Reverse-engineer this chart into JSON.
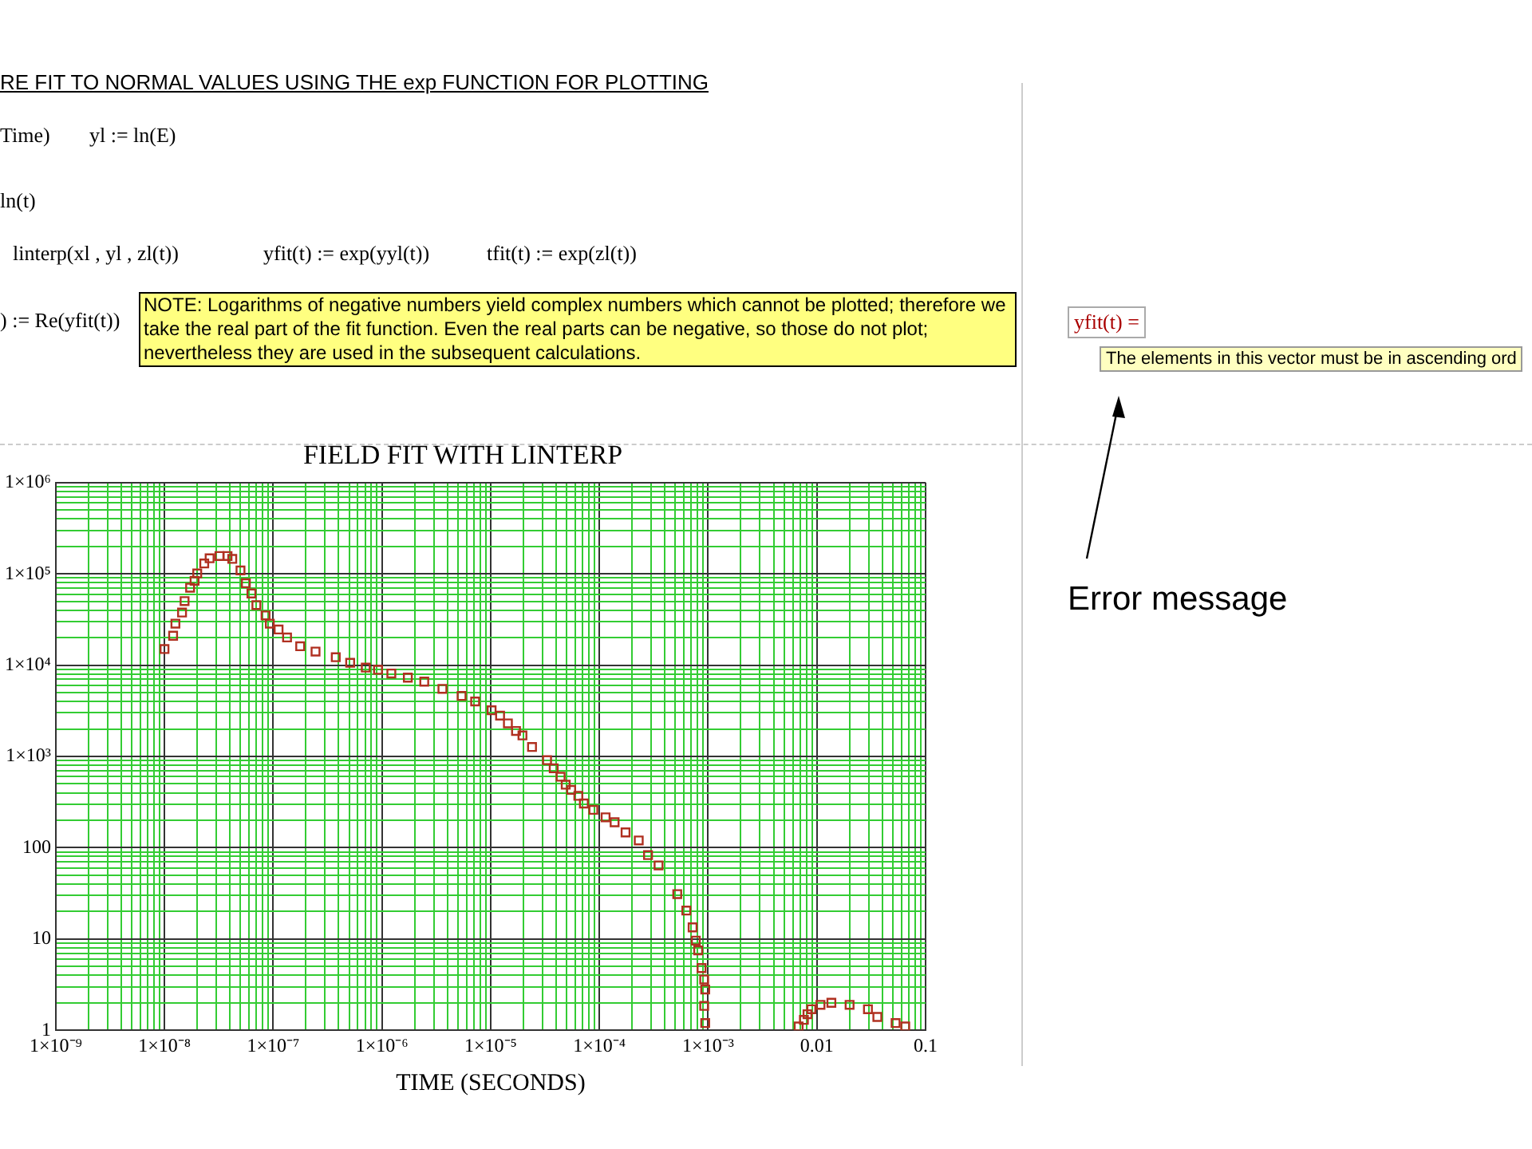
{
  "chart_data": {
    "type": "scatter",
    "title": "FIELD FIT WITH LINTERP",
    "xlabel": "TIME (SECONDS)",
    "log": "xy",
    "grid": true,
    "marker": "square",
    "xlim": [
      1e-09,
      0.1
    ],
    "xticks": [
      {
        "value": 1e-09,
        "label": "1×10⁻⁹"
      },
      {
        "value": 2e-09,
        "label": null
      },
      {
        "value": 3e-09,
        "label": null
      },
      {
        "value": 4e-09,
        "label": null
      },
      {
        "value": 5e-09,
        "label": null
      },
      {
        "value": 6e-09,
        "label": null
      },
      {
        "value": 7e-09,
        "label": null
      },
      {
        "value": 8e-09,
        "label": null
      },
      {
        "value": 9e-09,
        "label": null
      },
      {
        "value": 1e-08,
        "label": "1×10⁻⁸"
      },
      {
        "value": 2e-08,
        "label": null
      },
      {
        "value": 3e-08,
        "label": null
      },
      {
        "value": 4e-08,
        "label": null
      },
      {
        "value": 5e-08,
        "label": null
      },
      {
        "value": 6e-08,
        "label": null
      },
      {
        "value": 7e-08,
        "label": null
      },
      {
        "value": 8e-08,
        "label": null
      },
      {
        "value": 9e-08,
        "label": null
      },
      {
        "value": 1e-07,
        "label": "1×10⁻⁷"
      },
      {
        "value": 2e-07,
        "label": null
      },
      {
        "value": 3e-07,
        "label": null
      },
      {
        "value": 4e-07,
        "label": null
      },
      {
        "value": 5e-07,
        "label": null
      },
      {
        "value": 6e-07,
        "label": null
      },
      {
        "value": 7e-07,
        "label": null
      },
      {
        "value": 8e-07,
        "label": null
      },
      {
        "value": 9e-07,
        "label": null
      },
      {
        "value": 1e-06,
        "label": "1×10⁻⁶"
      },
      {
        "value": 2e-06,
        "label": null
      },
      {
        "value": 3e-06,
        "label": null
      },
      {
        "value": 4e-06,
        "label": null
      },
      {
        "value": 5e-06,
        "label": null
      },
      {
        "value": 6e-06,
        "label": null
      },
      {
        "value": 7e-06,
        "label": null
      },
      {
        "value": 8e-06,
        "label": null
      },
      {
        "value": 9e-06,
        "label": null
      },
      {
        "value": 1e-05,
        "label": "1×10⁻⁵"
      },
      {
        "value": 2e-05,
        "label": null
      },
      {
        "value": 3e-05,
        "label": null
      },
      {
        "value": 4e-05,
        "label": null
      },
      {
        "value": 5e-05,
        "label": null
      },
      {
        "value": 6e-05,
        "label": null
      },
      {
        "value": 7e-05,
        "label": null
      },
      {
        "value": 8e-05,
        "label": null
      },
      {
        "value": 9e-05,
        "label": null
      },
      {
        "value": 0.0001,
        "label": "1×10⁻⁴"
      },
      {
        "value": 0.0002,
        "label": null
      },
      {
        "value": 0.0003,
        "label": null
      },
      {
        "value": 0.0004,
        "label": null
      },
      {
        "value": 0.0005,
        "label": null
      },
      {
        "value": 0.0006,
        "label": null
      },
      {
        "value": 0.0007,
        "label": null
      },
      {
        "value": 0.0008,
        "label": null
      },
      {
        "value": 0.0009,
        "label": null
      },
      {
        "value": 0.001,
        "label": "1×10⁻³"
      },
      {
        "value": 0.002,
        "label": null
      },
      {
        "value": 0.003,
        "label": null
      },
      {
        "value": 0.004,
        "label": null
      },
      {
        "value": 0.005,
        "label": null
      },
      {
        "value": 0.006,
        "label": null
      },
      {
        "value": 0.007,
        "label": null
      },
      {
        "value": 0.008,
        "label": null
      },
      {
        "value": 0.009,
        "label": null
      },
      0.01,
      {
        "value": 0.02,
        "label": null
      },
      {
        "value": 0.03,
        "label": null
      },
      {
        "value": 0.04,
        "label": null
      },
      {
        "value": 0.05,
        "label": null
      },
      {
        "value": 0.06,
        "label": null
      },
      {
        "value": 0.07,
        "label": null
      },
      {
        "value": 0.08,
        "label": null
      },
      {
        "value": 0.09,
        "label": null
      },
      0.1
    ],
    "ylim": [
      1,
      1000000
    ],
    "yticks": [
      1,
      {
        "value": 2,
        "label": null
      },
      {
        "value": 3,
        "label": null
      },
      {
        "value": 4,
        "label": null
      },
      {
        "value": 5,
        "label": null
      },
      {
        "value": 6,
        "label": null
      },
      {
        "value": 7,
        "label": null
      },
      {
        "value": 8,
        "label": null
      },
      {
        "value": 9,
        "label": null
      },
      10,
      {
        "value": 20,
        "label": null
      },
      {
        "value": 30,
        "label": null
      },
      {
        "value": 40,
        "label": null
      },
      {
        "value": 50,
        "label": null
      },
      {
        "value": 60,
        "label": null
      },
      {
        "value": 70,
        "label": null
      },
      {
        "value": 80,
        "label": null
      },
      {
        "value": 90,
        "label": null
      },
      100,
      {
        "value": 200,
        "label": null
      },
      {
        "value": 300,
        "label": null
      },
      {
        "value": 400,
        "label": null
      },
      {
        "value": 500,
        "label": null
      },
      {
        "value": 600,
        "label": null
      },
      {
        "value": 700,
        "label": null
      },
      {
        "value": 800,
        "label": null
      },
      {
        "value": 900,
        "label": null
      },
      {
        "value": 1000,
        "label": "1×10³"
      },
      {
        "value": 2000,
        "label": null
      },
      {
        "value": 3000,
        "label": null
      },
      {
        "value": 4000,
        "label": null
      },
      {
        "value": 5000,
        "label": null
      },
      {
        "value": 6000,
        "label": null
      },
      {
        "value": 7000,
        "label": null
      },
      {
        "value": 8000,
        "label": null
      },
      {
        "value": 9000,
        "label": null
      },
      {
        "value": 10000,
        "label": "1×10⁴"
      },
      {
        "value": 20000,
        "label": null
      },
      {
        "value": 30000,
        "label": null
      },
      {
        "value": 40000,
        "label": null
      },
      {
        "value": 50000,
        "label": null
      },
      {
        "value": 60000,
        "label": null
      },
      {
        "value": 70000,
        "label": null
      },
      {
        "value": 80000,
        "label": null
      },
      {
        "value": 90000,
        "label": null
      },
      {
        "value": 100000,
        "label": "1×10⁵"
      },
      {
        "value": 200000,
        "label": null
      },
      {
        "value": 300000,
        "label": null
      },
      {
        "value": 400000,
        "label": null
      },
      {
        "value": 500000,
        "label": null
      },
      {
        "value": 600000,
        "label": null
      },
      {
        "value": 700000,
        "label": null
      },
      {
        "value": 800000,
        "label": null
      },
      {
        "value": 900000,
        "label": null
      },
      {
        "value": 1000000,
        "label": "1×10⁶"
      }
    ],
    "series": [
      {
        "color": "#b03020",
        "x": [
          1e-08,
          1.2e-08,
          1.26e-08,
          1.45e-08,
          1.53e-08,
          1.72e-08,
          1.89e-08,
          2e-08,
          2.32e-08,
          2.6e-08,
          3.2e-08,
          3.8e-08,
          4.2e-08,
          5e-08,
          5.6e-08,
          6.3e-08,
          7e-08,
          8.5e-08,
          9.3e-08,
          1.12e-07,
          1.34e-07,
          1.77e-07,
          2.45e-07,
          3.76e-07,
          5.1e-07,
          7.1e-07,
          9.2e-07,
          1.22e-06,
          1.73e-06,
          2.45e-06,
          3.6e-06,
          5.4e-06,
          7.2e-06,
          1.02e-05,
          1.22e-05,
          1.44e-05,
          1.71e-05,
          1.96e-05,
          2.4e-05,
          3.3e-05,
          3.8e-05,
          4.4e-05,
          4.9e-05,
          5.5e-05,
          6.4e-05,
          7.2e-05,
          8.8e-05,
          0.000114,
          0.000138,
          0.000174,
          0.00023,
          0.00028,
          0.00035,
          0.00052,
          0.00063,
          0.00072,
          0.00077,
          0.00081,
          0.00087,
          0.00092,
          0.00094,
          0.00092,
          0.00094,
          0.0068,
          0.0076,
          0.0082,
          0.0089,
          0.0108,
          0.0136,
          0.02,
          0.0295,
          0.036,
          0.053,
          0.065
        ],
        "values": [
          15000,
          21000,
          28500,
          37700,
          50300,
          70500,
          84000,
          101000,
          130000,
          148000,
          157000,
          157000,
          146000,
          109000,
          79000,
          61000,
          45500,
          35000,
          28500,
          24600,
          20100,
          16100,
          14100,
          12200,
          10600,
          9400,
          8900,
          8100,
          7300,
          6600,
          5500,
          4600,
          4000,
          3200,
          2800,
          2300,
          1900,
          1700,
          1270,
          910,
          740,
          600,
          490,
          430,
          370,
          305,
          260,
          215,
          190,
          147,
          120,
          83,
          64,
          31,
          20.5,
          13.4,
          9.6,
          7.5,
          4.8,
          3.6,
          2.8,
          1.85,
          1.2,
          1.1,
          1.3,
          1.5,
          1.7,
          1.9,
          2.0,
          1.9,
          1.7,
          1.4,
          1.2,
          1.1
        ]
      }
    ],
    "annotations": [
      "RE FIT TO NORMAL VALUES USING THE exp FUNCTION FOR PLOTTING",
      "Time)",
      "yl := ln(E)",
      "ln(t)",
      "linterp(xl , yl , zl(t))",
      "yfit(t) := exp(yyl(t))",
      "tfit(t) := exp(zl(t))",
      ") := Re(yfit(t))",
      "NOTE:  Logarithms of negative numbers yield complex numbers which cannot be plotted; therefore we take the real part of the fit function.  Even the real parts can be  negative, so those do not plot; nevertheless they are used in the subsequent calculations.",
      "yfit(t) =",
      "The elements in this vector must be in ascending ord",
      "Error message"
    ]
  }
}
